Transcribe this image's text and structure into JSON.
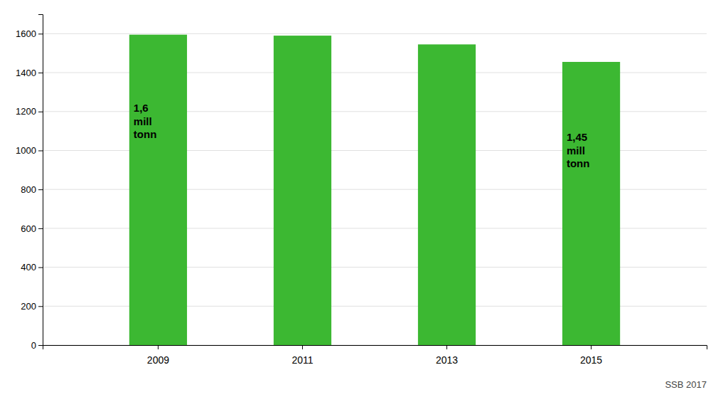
{
  "chart_data": {
    "type": "bar",
    "categories": [
      "2009",
      "2011",
      "2013",
      "2015"
    ],
    "values": [
      1595,
      1590,
      1545,
      1455
    ],
    "color": "#3cb832",
    "ylim": [
      0,
      1700
    ],
    "yticks": [
      0,
      200,
      400,
      600,
      800,
      1000,
      1200,
      1400,
      1600
    ],
    "grid": true,
    "annotations": [
      {
        "text": "1,6\nmill\ntonn",
        "x": "2009",
        "y": 1150
      },
      {
        "text": "1,45\nmill\ntonn",
        "x": "2015",
        "y": 1000
      }
    ],
    "source": "SSB 2017"
  }
}
